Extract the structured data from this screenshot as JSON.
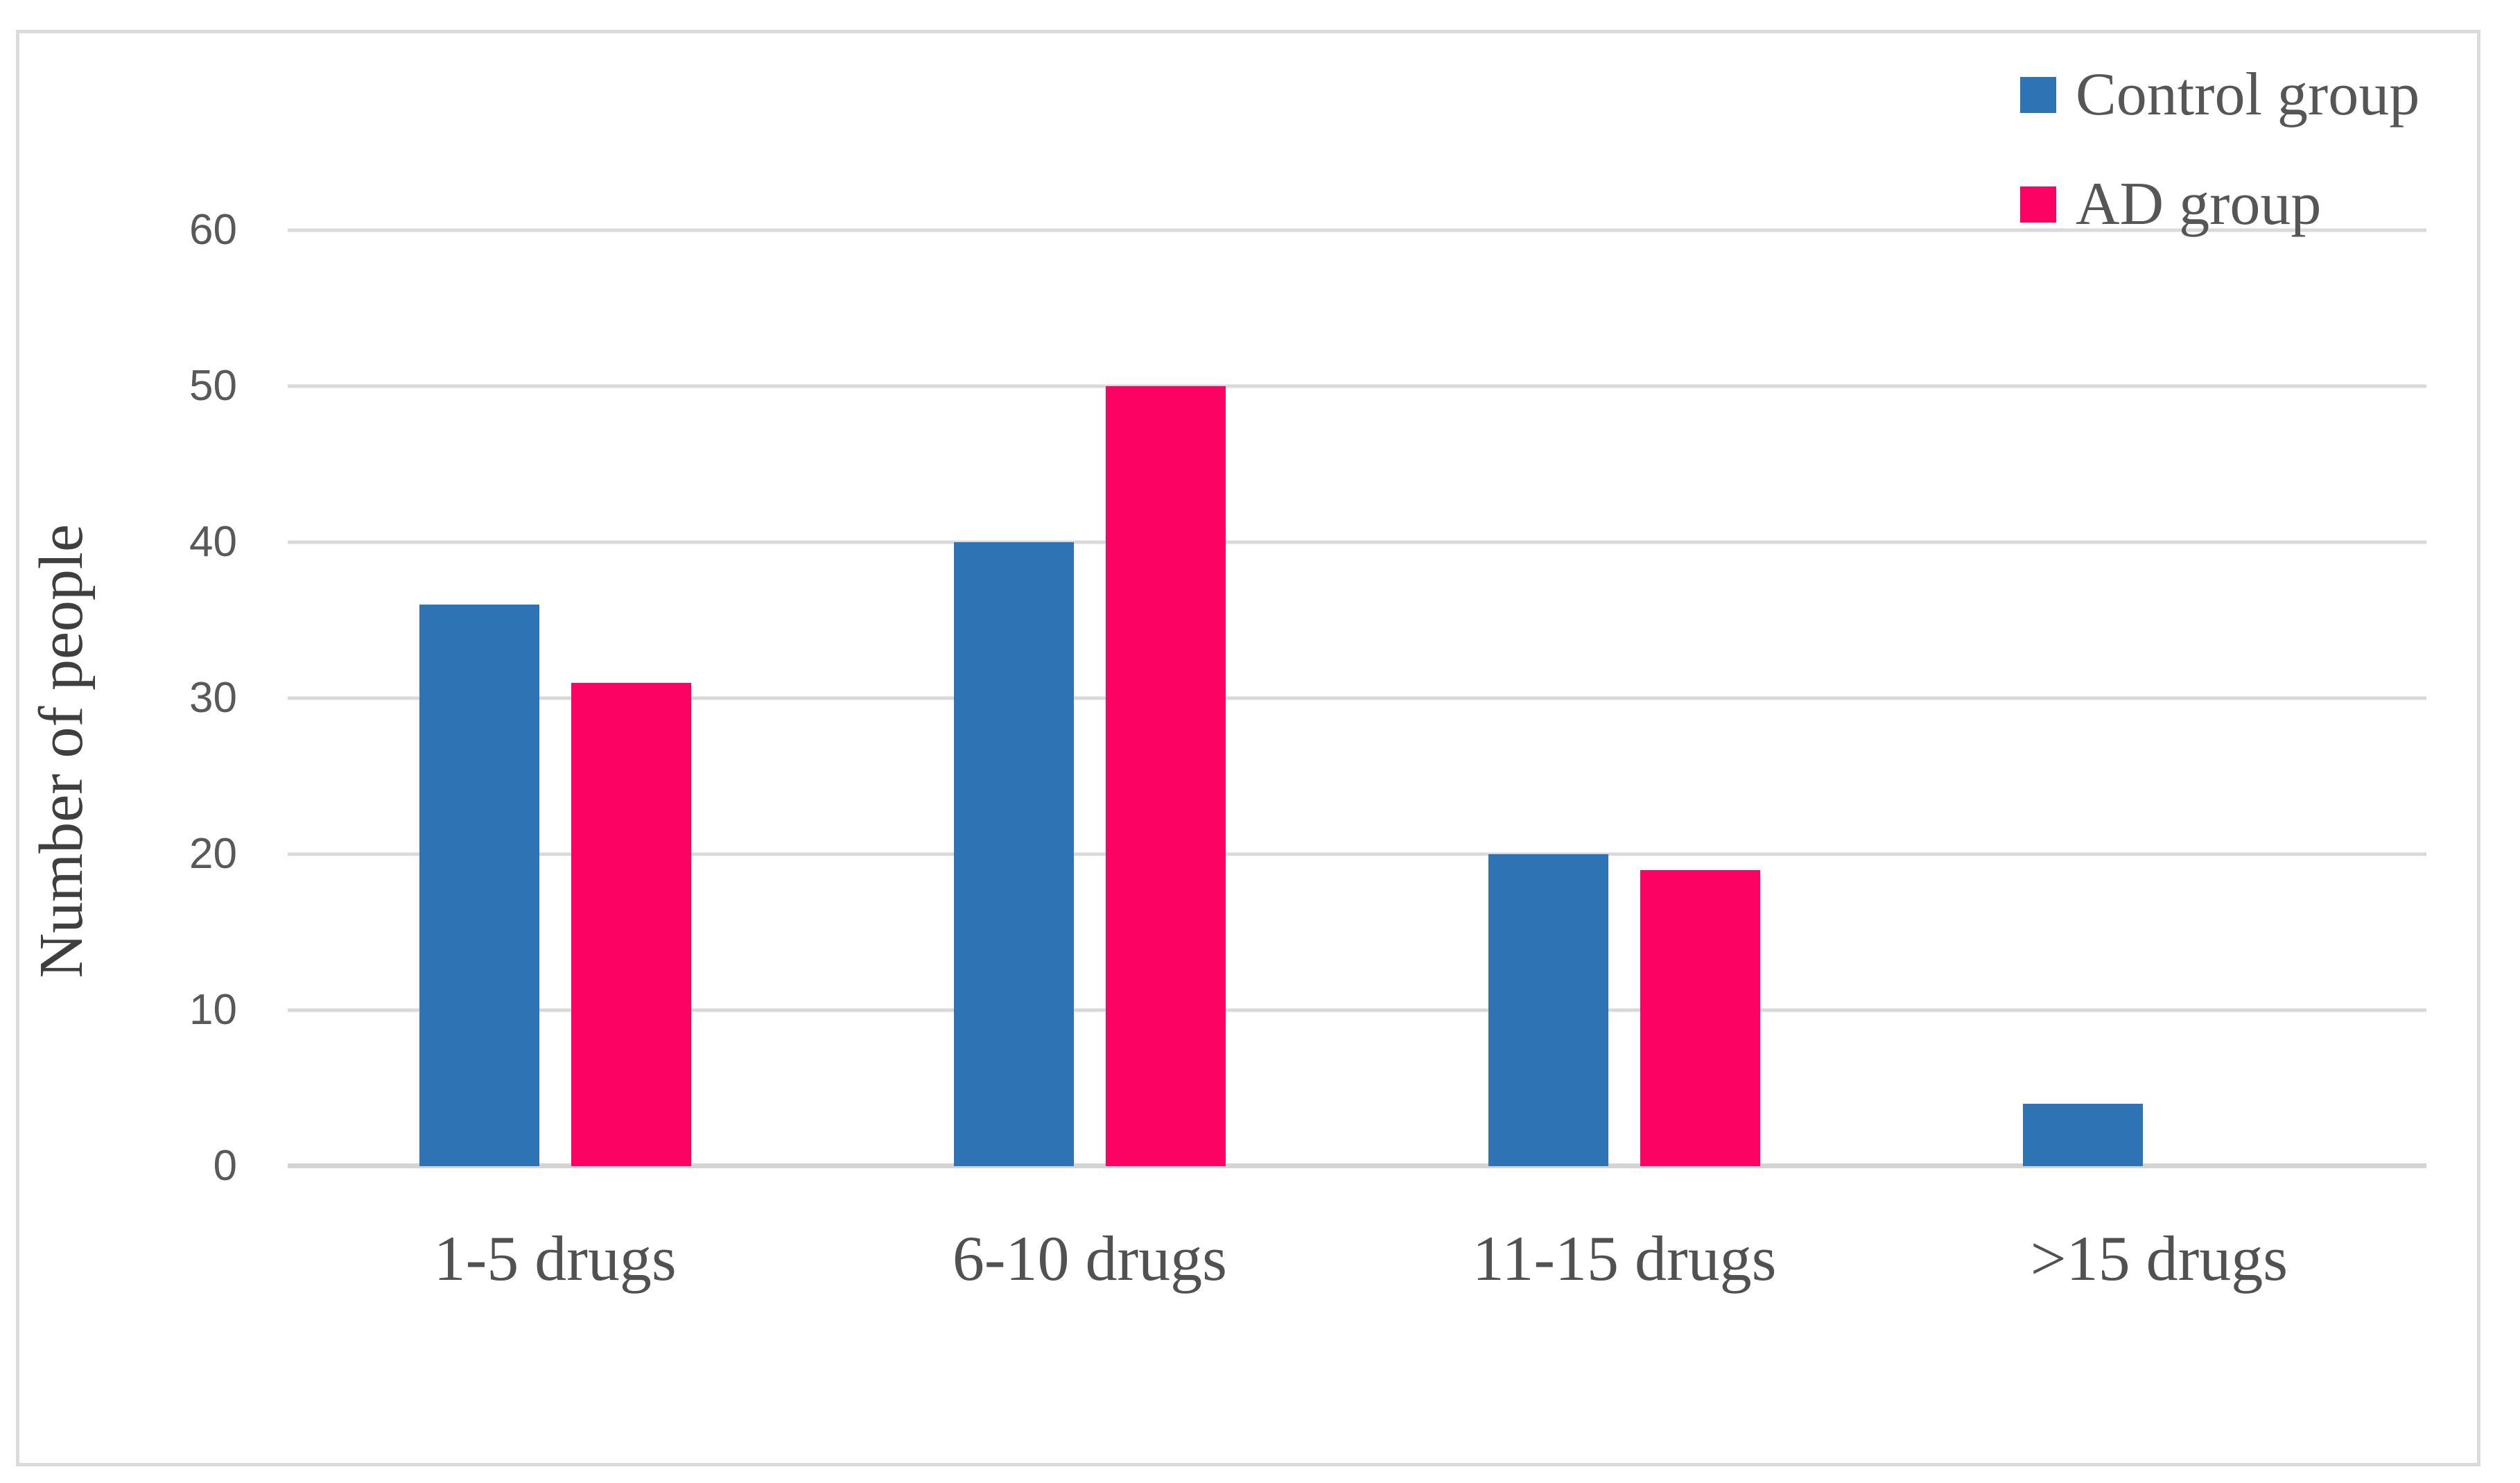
{
  "chart_data": {
    "type": "bar",
    "categories": [
      "1-5 drugs",
      "6-10 drugs",
      "11-15 drugs",
      ">15 drugs"
    ],
    "series": [
      {
        "name": "Control group",
        "color": "#2E74B5",
        "values": [
          36,
          40,
          20,
          4
        ]
      },
      {
        "name": "AD group",
        "color": "#FC0363",
        "values": [
          31,
          50,
          19,
          0
        ]
      }
    ],
    "title": "",
    "xlabel": "",
    "ylabel": "Number of people",
    "ylim": [
      0,
      60
    ],
    "yticks": [
      0,
      10,
      20,
      30,
      40,
      50,
      60
    ],
    "ytick_labels": [
      "0",
      "10",
      "20",
      "30",
      "40",
      "50",
      "60"
    ],
    "grid": "horizontal",
    "legend_position": "top-right"
  },
  "palette": {
    "control_bar": "#2E74B5",
    "ad_bar": "#FC0363",
    "gridline": "#D9D9D9",
    "axis_line": "#D4D4D4",
    "frame_border": "#DBDBDB",
    "tick_text": "#595959",
    "label_text": "#515151",
    "axis_title_text": "#3F3F3F",
    "background": "#FFFFFF"
  }
}
